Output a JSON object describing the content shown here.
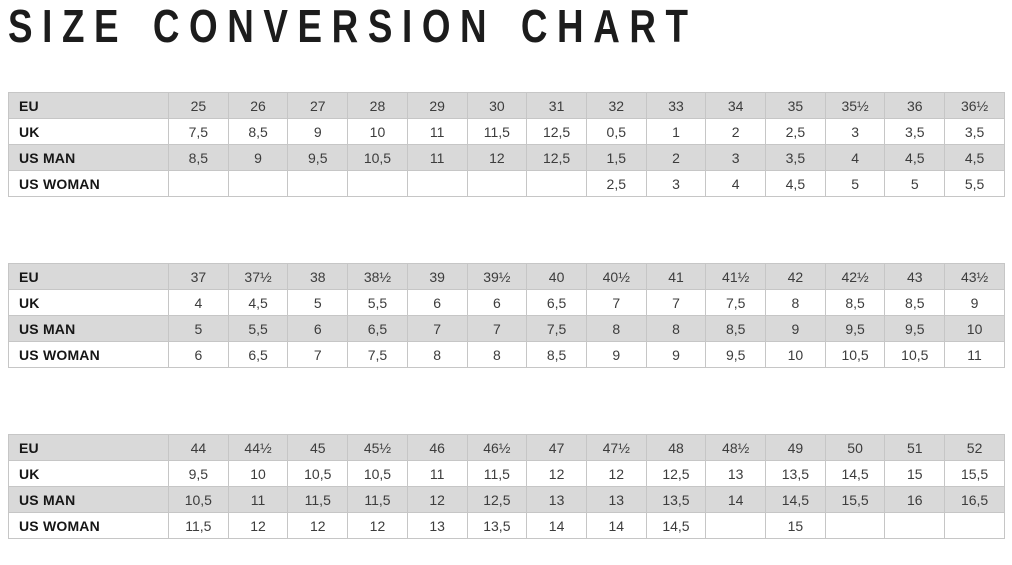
{
  "page": {
    "title": "SIZE CONVERSION CHART"
  },
  "colors": {
    "shaded_row_bg": "#d9d9d9",
    "plain_row_bg": "#ffffff",
    "border": "#c6c6c6",
    "label_text": "#161616",
    "value_text": "#3c3c3c",
    "title_text": "#1c1c1c"
  },
  "tables": [
    {
      "rows": [
        {
          "label": "EU",
          "shaded": true,
          "values": [
            "25",
            "26",
            "27",
            "28",
            "29",
            "30",
            "31",
            "32",
            "33",
            "34",
            "35",
            "35½",
            "36",
            "36½"
          ]
        },
        {
          "label": "UK",
          "shaded": false,
          "values": [
            "7,5",
            "8,5",
            "9",
            "10",
            "11",
            "11,5",
            "12,5",
            "0,5",
            "1",
            "2",
            "2,5",
            "3",
            "3,5",
            "3,5"
          ]
        },
        {
          "label": "US MAN",
          "shaded": true,
          "values": [
            "8,5",
            "9",
            "9,5",
            "10,5",
            "11",
            "12",
            "12,5",
            "1,5",
            "2",
            "3",
            "3,5",
            "4",
            "4,5",
            "4,5"
          ]
        },
        {
          "label": "US WOMAN",
          "shaded": false,
          "values": [
            "",
            "",
            "",
            "",
            "",
            "",
            "",
            "2,5",
            "3",
            "4",
            "4,5",
            "5",
            "5",
            "5,5"
          ]
        }
      ]
    },
    {
      "rows": [
        {
          "label": "EU",
          "shaded": true,
          "values": [
            "37",
            "37½",
            "38",
            "38½",
            "39",
            "39½",
            "40",
            "40½",
            "41",
            "41½",
            "42",
            "42½",
            "43",
            "43½"
          ]
        },
        {
          "label": "UK",
          "shaded": false,
          "values": [
            "4",
            "4,5",
            "5",
            "5,5",
            "6",
            "6",
            "6,5",
            "7",
            "7",
            "7,5",
            "8",
            "8,5",
            "8,5",
            "9"
          ]
        },
        {
          "label": "US MAN",
          "shaded": true,
          "values": [
            "5",
            "5,5",
            "6",
            "6,5",
            "7",
            "7",
            "7,5",
            "8",
            "8",
            "8,5",
            "9",
            "9,5",
            "9,5",
            "10"
          ]
        },
        {
          "label": "US WOMAN",
          "shaded": false,
          "values": [
            "6",
            "6,5",
            "7",
            "7,5",
            "8",
            "8",
            "8,5",
            "9",
            "9",
            "9,5",
            "10",
            "10,5",
            "10,5",
            "11"
          ]
        }
      ]
    },
    {
      "rows": [
        {
          "label": "EU",
          "shaded": true,
          "values": [
            "44",
            "44½",
            "45",
            "45½",
            "46",
            "46½",
            "47",
            "47½",
            "48",
            "48½",
            "49",
            "50",
            "51",
            "52"
          ]
        },
        {
          "label": "UK",
          "shaded": false,
          "values": [
            "9,5",
            "10",
            "10,5",
            "10,5",
            "11",
            "11,5",
            "12",
            "12",
            "12,5",
            "13",
            "13,5",
            "14,5",
            "15",
            "15,5"
          ]
        },
        {
          "label": "US MAN",
          "shaded": true,
          "values": [
            "10,5",
            "11",
            "11,5",
            "11,5",
            "12",
            "12,5",
            "13",
            "13",
            "13,5",
            "14",
            "14,5",
            "15,5",
            "16",
            "16,5"
          ]
        },
        {
          "label": "US WOMAN",
          "shaded": false,
          "values": [
            "11,5",
            "12",
            "12",
            "12",
            "13",
            "13,5",
            "14",
            "14",
            "14,5",
            "",
            "15",
            "",
            "",
            ""
          ]
        }
      ]
    }
  ]
}
